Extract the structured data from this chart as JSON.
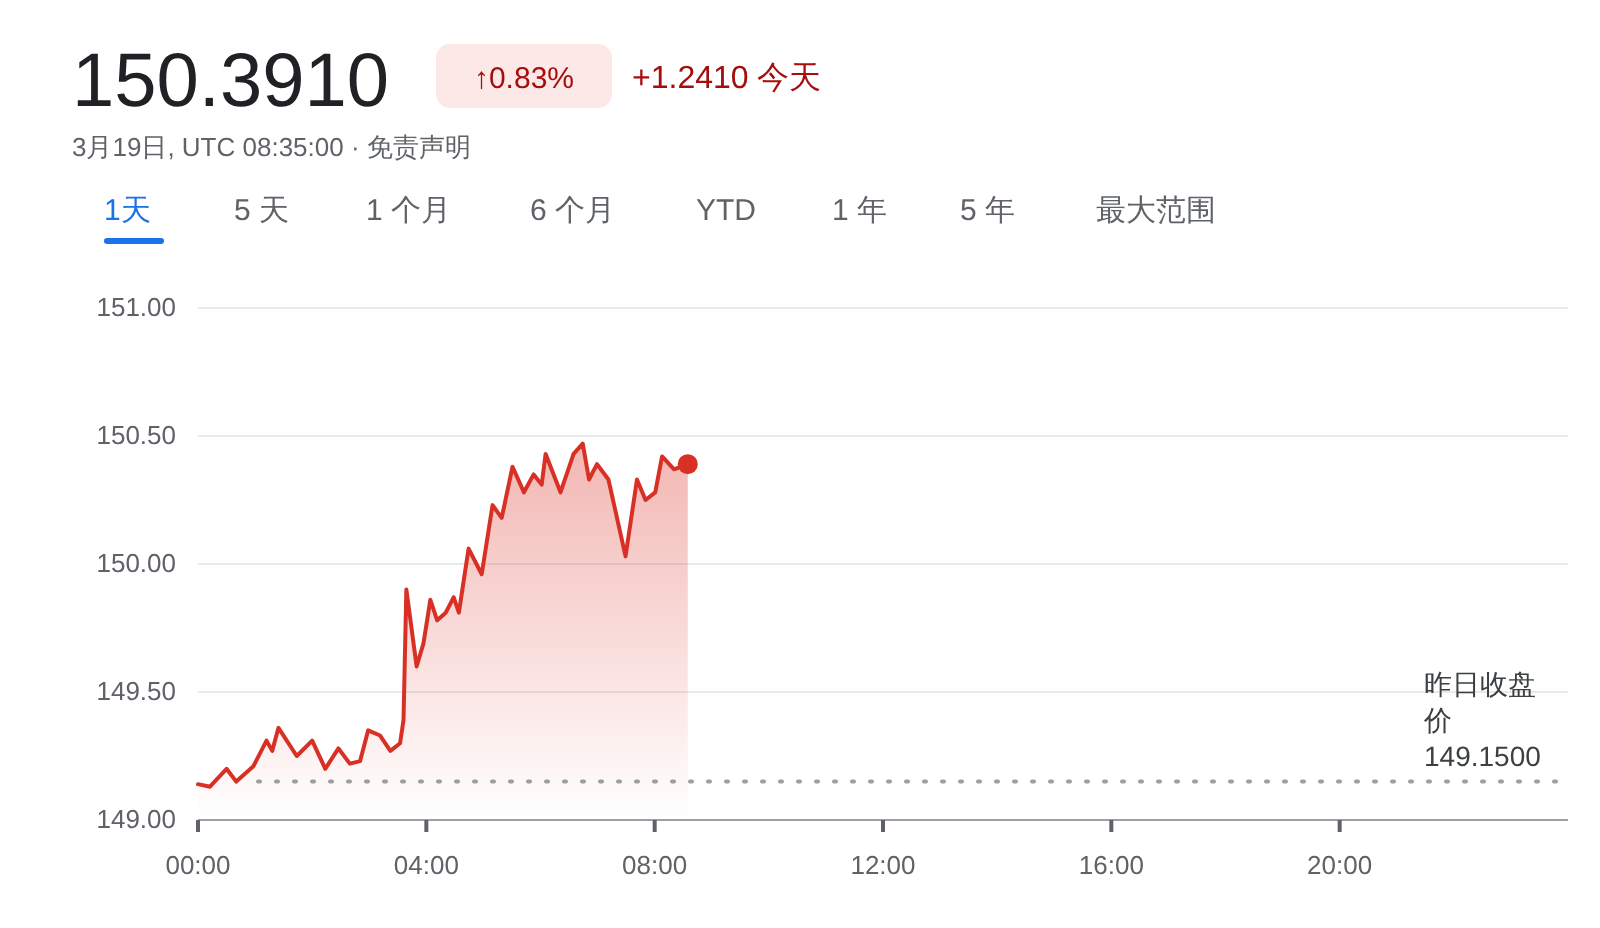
{
  "chart_data": {
    "type": "area",
    "title": "150.3910",
    "subtitle": "3月19日, UTC 08:35:00 · 免责声明",
    "annotations": [
      "↑0.83%",
      "+1.2410 今天",
      "1天",
      "5 天",
      "1 个月",
      "6 个月",
      "YTD",
      "1 年",
      "5 年",
      "最大范围"
    ],
    "xlim": [
      0,
      24
    ],
    "xticks": [
      {
        "value": 0,
        "label": "00:00"
      },
      {
        "value": 4,
        "label": "04:00"
      },
      {
        "value": 8,
        "label": "08:00"
      },
      {
        "value": 12,
        "label": "12:00"
      },
      {
        "value": 16,
        "label": "16:00"
      },
      {
        "value": 20,
        "label": "20:00"
      }
    ],
    "ylim": [
      149,
      151
    ],
    "yticks": [
      {
        "value": 149,
        "label": "149.00"
      },
      {
        "value": 149.5,
        "label": "149.50"
      },
      {
        "value": 150,
        "label": "150.00"
      },
      {
        "value": 150.5,
        "label": "150.50"
      },
      {
        "value": 151,
        "label": "151.00"
      }
    ],
    "grid": "y",
    "ref_lines": [
      {
        "axis": "y",
        "value": 149.15,
        "label": "昨日收盘价 149.1500",
        "color": "#9aa0a6",
        "line_style": "dotted"
      }
    ],
    "series": [
      {
        "color": "#d93025",
        "x": [
          0,
          0.21,
          0.5,
          0.67,
          0.97,
          1.2,
          1.3,
          1.41,
          1.73,
          2.0,
          2.23,
          2.46,
          2.66,
          2.84,
          2.98,
          3.19,
          3.37,
          3.54,
          3.6,
          3.65,
          3.83,
          3.95,
          4.07,
          4.19,
          4.34,
          4.48,
          4.57,
          4.74,
          4.97,
          5.16,
          5.32,
          5.51,
          5.71,
          5.88,
          6.02,
          6.09,
          6.35,
          6.58,
          6.74,
          6.85,
          6.99,
          7.19,
          7.49,
          7.69,
          7.84,
          8.01,
          8.13,
          8.34,
          8.58
        ],
        "values": [
          149.14,
          149.13,
          149.2,
          149.15,
          149.21,
          149.31,
          149.27,
          149.36,
          149.25,
          149.31,
          149.2,
          149.28,
          149.22,
          149.23,
          149.35,
          149.33,
          149.27,
          149.3,
          149.39,
          149.9,
          149.6,
          149.69,
          149.86,
          149.78,
          149.81,
          149.87,
          149.81,
          150.06,
          149.96,
          150.23,
          150.18,
          150.38,
          150.28,
          150.35,
          150.31,
          150.43,
          150.28,
          150.43,
          150.47,
          150.33,
          150.39,
          150.33,
          150.03,
          150.33,
          150.25,
          150.28,
          150.42,
          150.37,
          150.39
        ]
      }
    ]
  }
}
